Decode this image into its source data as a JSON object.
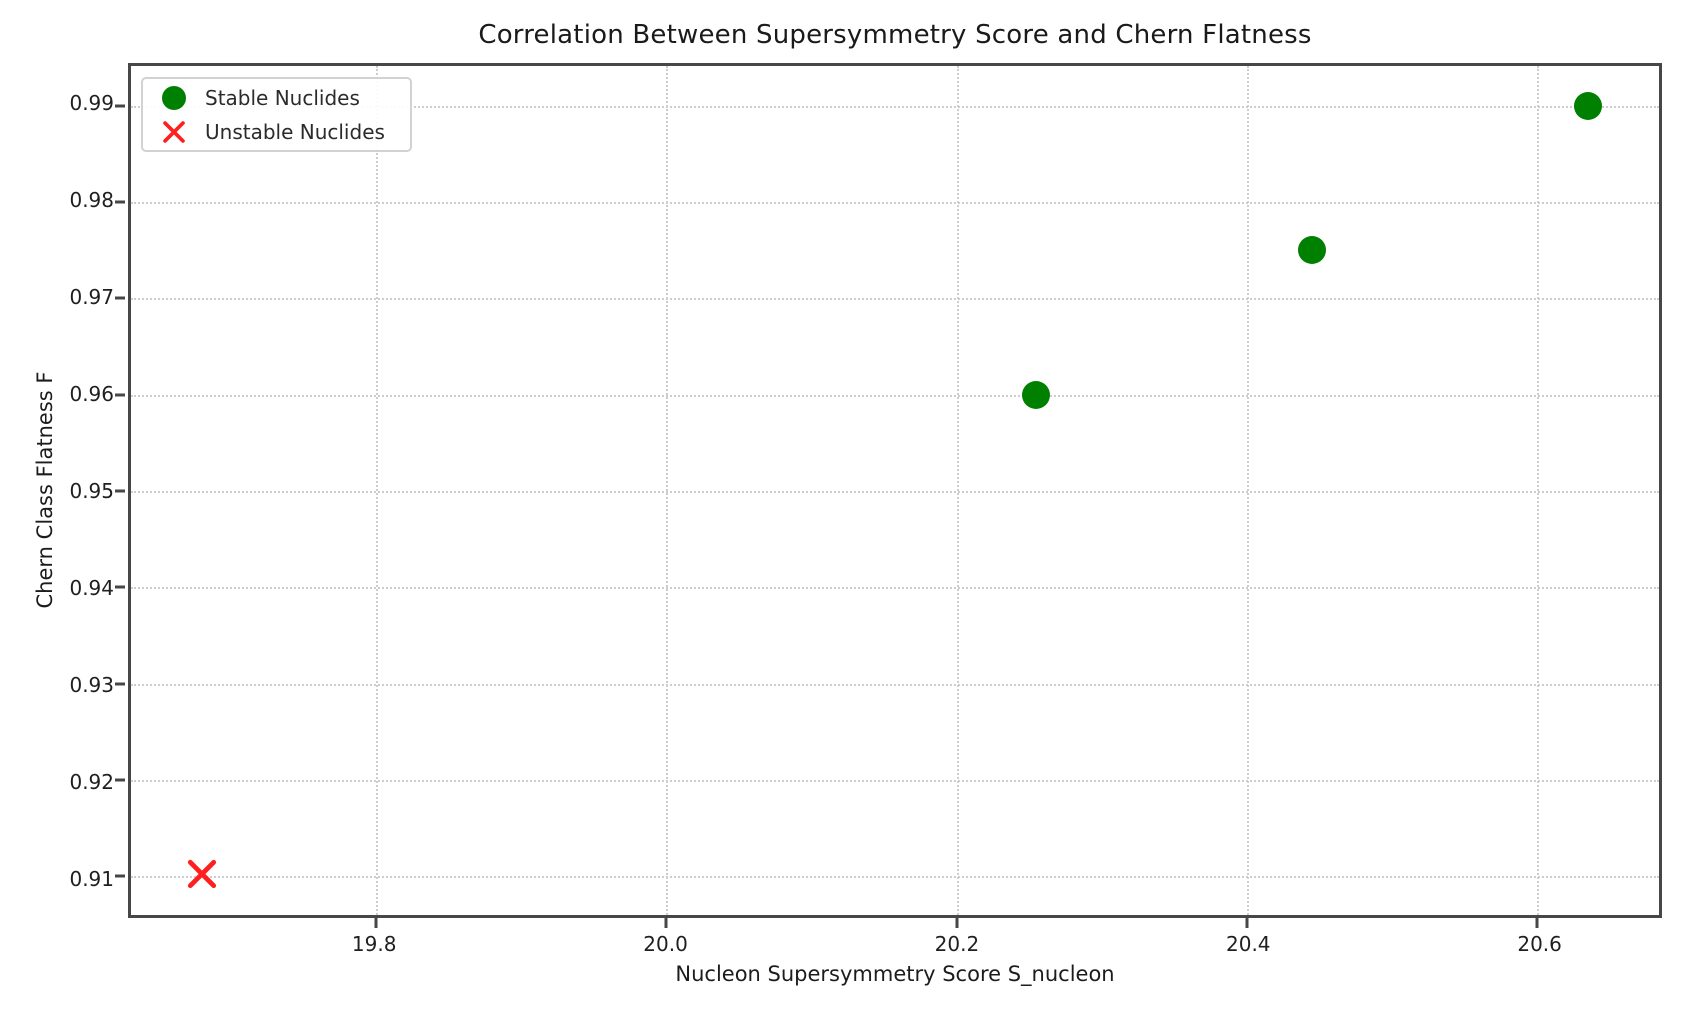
{
  "chart_data": {
    "type": "scatter",
    "title": "Correlation Between Supersymmetry Score and Chern Flatness",
    "xlabel": "Nucleon Supersymmetry Score S_nucleon",
    "ylabel": "Chern Class Flatness F",
    "xlim": [
      19.631,
      20.684
    ],
    "ylim": [
      0.906,
      0.9941
    ],
    "grid": true,
    "grid_style": "dotted",
    "legend_position": "upper-left",
    "x_ticks": [
      {
        "value": 19.8,
        "label": "19.8"
      },
      {
        "value": 20.0,
        "label": "20.0"
      },
      {
        "value": 20.2,
        "label": "20.2"
      },
      {
        "value": 20.4,
        "label": "20.4"
      },
      {
        "value": 20.6,
        "label": "20.6"
      }
    ],
    "y_ticks": [
      {
        "value": 0.91,
        "label": "0.91"
      },
      {
        "value": 0.92,
        "label": "0.92"
      },
      {
        "value": 0.93,
        "label": "0.93"
      },
      {
        "value": 0.94,
        "label": "0.94"
      },
      {
        "value": 0.95,
        "label": "0.95"
      },
      {
        "value": 0.96,
        "label": "0.96"
      },
      {
        "value": 0.97,
        "label": "0.97"
      },
      {
        "value": 0.98,
        "label": "0.98"
      },
      {
        "value": 0.99,
        "label": "0.99"
      }
    ],
    "series": [
      {
        "name": "Stable Nuclides",
        "marker": "circle",
        "color": "#008000",
        "points": [
          {
            "x": 20.255,
            "y": 0.96
          },
          {
            "x": 20.445,
            "y": 0.975
          },
          {
            "x": 20.635,
            "y": 0.99
          }
        ]
      },
      {
        "name": "Unstable Nuclides",
        "marker": "x",
        "color": "#ff1f1f",
        "points": [
          {
            "x": 19.68,
            "y": 0.91
          }
        ]
      }
    ],
    "style": {
      "grid_color": "#cdcdcd",
      "frame_color": "#474747",
      "text_color": "#1c1c1c",
      "legend_border_color": "#d2d2d2",
      "background": "#ffffff"
    }
  }
}
